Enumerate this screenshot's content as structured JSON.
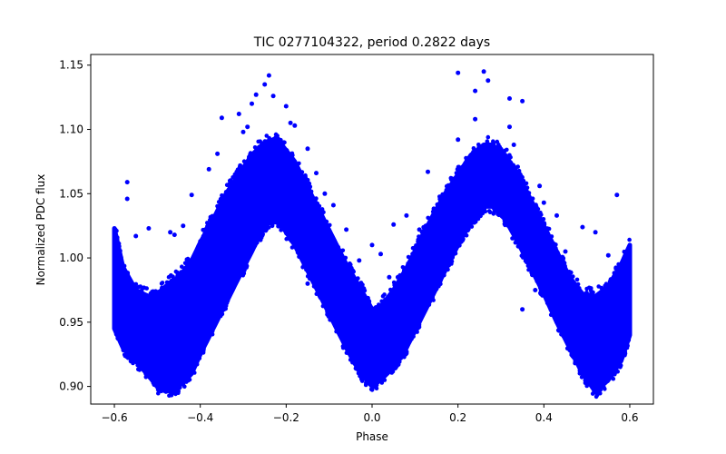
{
  "chart_data": {
    "type": "scatter",
    "title": "TIC 0277104322, period 0.2822 days",
    "xlabel": "Phase",
    "ylabel": "Normalized PDC flux",
    "xlim": [
      -0.655,
      0.655
    ],
    "ylim": [
      0.8863,
      1.1583
    ],
    "xticks": [
      -0.6,
      -0.4,
      -0.2,
      0.0,
      0.2,
      0.4,
      0.6
    ],
    "xtick_labels": [
      "−0.6",
      "−0.4",
      "−0.2",
      "0.0",
      "0.2",
      "0.4",
      "0.6"
    ],
    "yticks": [
      0.9,
      0.95,
      1.0,
      1.05,
      1.1,
      1.15
    ],
    "ytick_labels": [
      "0.90",
      "0.95",
      "1.00",
      "1.05",
      "1.10",
      "1.15"
    ],
    "grid": false,
    "marker_color": "#0000ff",
    "series": [
      {
        "marker": "filled-circle",
        "color": "#0000ff",
        "envelope_note": "dense band of points, double-peaked light curve",
        "x": [
          -0.6,
          -0.58,
          -0.55,
          -0.52,
          -0.5,
          -0.48,
          -0.45,
          -0.42,
          -0.4,
          -0.37,
          -0.34,
          -0.31,
          -0.28,
          -0.25,
          -0.23,
          -0.21,
          -0.18,
          -0.15,
          -0.12,
          -0.09,
          -0.06,
          -0.03,
          0.0,
          0.02,
          0.05,
          0.08,
          0.11,
          0.14,
          0.17,
          0.2,
          0.23,
          0.26,
          0.28,
          0.31,
          0.34,
          0.37,
          0.4,
          0.43,
          0.46,
          0.49,
          0.52,
          0.55,
          0.58,
          0.6
        ],
        "y_upper": [
          1.023,
          0.993,
          0.975,
          0.97,
          0.972,
          0.978,
          0.985,
          0.998,
          1.012,
          1.03,
          1.05,
          1.065,
          1.08,
          1.09,
          1.092,
          1.088,
          1.075,
          1.055,
          1.035,
          1.015,
          0.995,
          0.978,
          0.96,
          0.962,
          0.975,
          0.992,
          1.012,
          1.032,
          1.05,
          1.065,
          1.08,
          1.088,
          1.088,
          1.08,
          1.065,
          1.045,
          1.025,
          1.005,
          0.985,
          0.972,
          0.97,
          0.978,
          0.995,
          1.01
        ],
        "y_lower": [
          0.945,
          0.93,
          0.92,
          0.908,
          0.9,
          0.896,
          0.9,
          0.91,
          0.925,
          0.945,
          0.965,
          0.985,
          1.005,
          1.025,
          1.03,
          1.025,
          1.01,
          0.99,
          0.97,
          0.95,
          0.93,
          0.912,
          0.9,
          0.905,
          0.915,
          0.93,
          0.95,
          0.97,
          0.99,
          1.01,
          1.028,
          1.04,
          1.04,
          1.03,
          1.012,
          0.992,
          0.972,
          0.95,
          0.93,
          0.91,
          0.896,
          0.905,
          0.92,
          0.94
        ]
      }
    ],
    "outliers": [
      {
        "x": -0.57,
        "y": 1.059
      },
      {
        "x": -0.57,
        "y": 1.046
      },
      {
        "x": -0.52,
        "y": 1.023
      },
      {
        "x": -0.55,
        "y": 1.017
      },
      {
        "x": -0.42,
        "y": 1.049
      },
      {
        "x": -0.38,
        "y": 1.069
      },
      {
        "x": -0.36,
        "y": 1.081
      },
      {
        "x": -0.35,
        "y": 1.109
      },
      {
        "x": -0.31,
        "y": 1.112
      },
      {
        "x": -0.29,
        "y": 1.102
      },
      {
        "x": -0.27,
        "y": 1.127
      },
      {
        "x": -0.25,
        "y": 1.135
      },
      {
        "x": -0.24,
        "y": 1.142
      },
      {
        "x": -0.23,
        "y": 1.126
      },
      {
        "x": -0.2,
        "y": 1.118
      },
      {
        "x": -0.28,
        "y": 1.12
      },
      {
        "x": -0.44,
        "y": 1.025
      },
      {
        "x": -0.47,
        "y": 1.02
      },
      {
        "x": -0.46,
        "y": 1.018
      },
      {
        "x": -0.3,
        "y": 1.098
      },
      {
        "x": -0.18,
        "y": 1.103
      },
      {
        "x": -0.19,
        "y": 1.105
      },
      {
        "x": -0.15,
        "y": 1.085
      },
      {
        "x": -0.13,
        "y": 1.066
      },
      {
        "x": -0.11,
        "y": 1.05
      },
      {
        "x": -0.09,
        "y": 1.041
      },
      {
        "x": -0.06,
        "y": 1.022
      },
      {
        "x": -0.03,
        "y": 0.998
      },
      {
        "x": 0.0,
        "y": 1.01
      },
      {
        "x": 0.02,
        "y": 1.003
      },
      {
        "x": 0.04,
        "y": 0.985
      },
      {
        "x": 0.06,
        "y": 0.985
      },
      {
        "x": 0.05,
        "y": 1.026
      },
      {
        "x": 0.08,
        "y": 1.033
      },
      {
        "x": 0.11,
        "y": 1.022
      },
      {
        "x": 0.13,
        "y": 1.067
      },
      {
        "x": 0.2,
        "y": 1.144
      },
      {
        "x": 0.24,
        "y": 1.13
      },
      {
        "x": 0.26,
        "y": 1.145
      },
      {
        "x": 0.27,
        "y": 1.138
      },
      {
        "x": 0.32,
        "y": 1.124
      },
      {
        "x": 0.35,
        "y": 1.122
      },
      {
        "x": 0.24,
        "y": 1.108
      },
      {
        "x": 0.32,
        "y": 1.102
      },
      {
        "x": 0.2,
        "y": 1.092
      },
      {
        "x": 0.33,
        "y": 1.088
      },
      {
        "x": 0.39,
        "y": 1.056
      },
      {
        "x": 0.4,
        "y": 1.043
      },
      {
        "x": 0.43,
        "y": 1.033
      },
      {
        "x": 0.49,
        "y": 1.024
      },
      {
        "x": 0.52,
        "y": 1.02
      },
      {
        "x": 0.57,
        "y": 1.049
      },
      {
        "x": 0.45,
        "y": 1.005
      },
      {
        "x": 0.55,
        "y": 1.002
      },
      {
        "x": -0.15,
        "y": 0.98
      },
      {
        "x": 0.38,
        "y": 0.99
      },
      {
        "x": -0.05,
        "y": 0.93
      },
      {
        "x": 0.35,
        "y": 0.96
      },
      {
        "x": 0.43,
        "y": 0.95
      },
      {
        "x": 0.38,
        "y": 0.975
      }
    ]
  }
}
